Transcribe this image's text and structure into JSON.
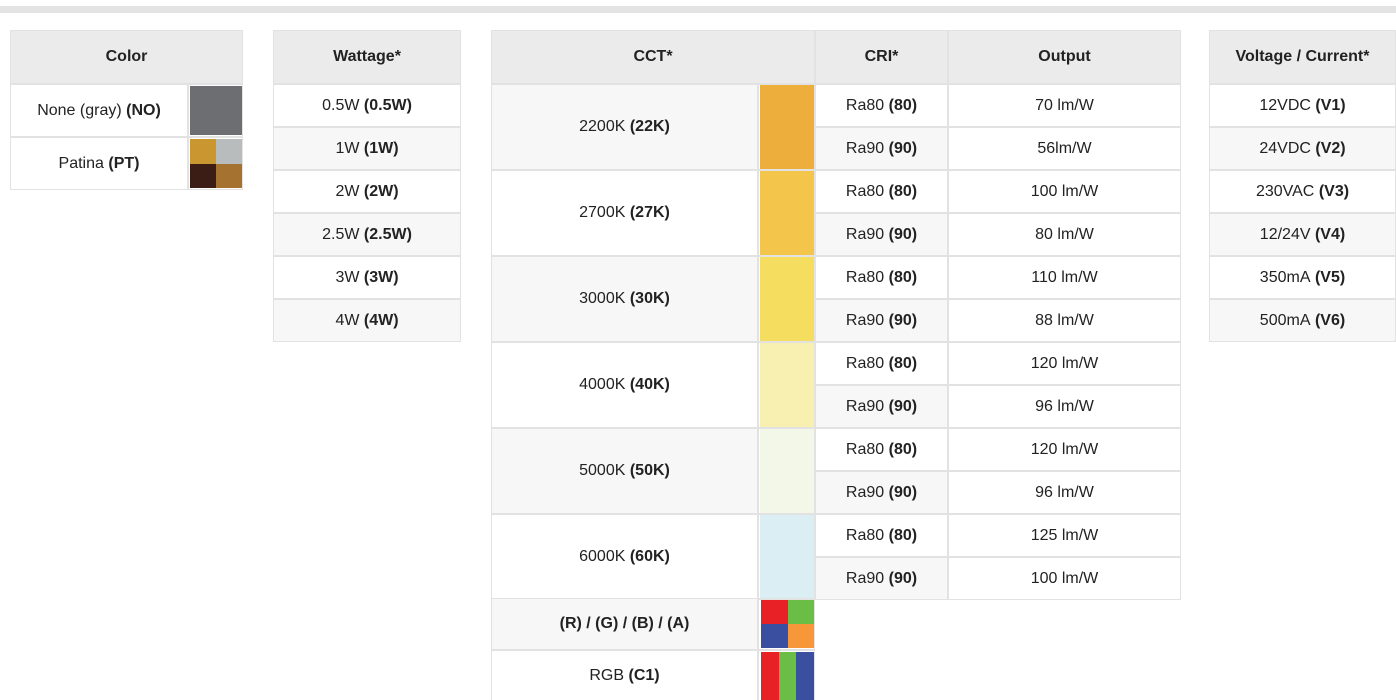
{
  "color": {
    "header": "Color",
    "rows": [
      {
        "label": "None (gray)",
        "code": "(NO)"
      },
      {
        "label": "Patina",
        "code": "(PT)"
      }
    ]
  },
  "wattage": {
    "header": "Wattage*",
    "rows": [
      {
        "label": "0.5W",
        "code": "(0.5W)"
      },
      {
        "label": "1W",
        "code": "(1W)"
      },
      {
        "label": "2W",
        "code": "(2W)"
      },
      {
        "label": "2.5W",
        "code": "(2.5W)"
      },
      {
        "label": "3W",
        "code": "(3W)"
      },
      {
        "label": "4W",
        "code": "(4W)"
      }
    ]
  },
  "cct": {
    "headers": [
      "CCT*",
      "CRI*",
      "Output"
    ],
    "rows": [
      {
        "label": "2200K",
        "code": "(22K)",
        "cri": [
          {
            "label": "Ra80",
            "code": "(80)",
            "output": "70 lm/W"
          },
          {
            "label": "Ra90",
            "code": "(90)",
            "output": "56lm/W"
          }
        ]
      },
      {
        "label": "2700K",
        "code": "(27K)",
        "cri": [
          {
            "label": "Ra80",
            "code": "(80)",
            "output": "100 lm/W"
          },
          {
            "label": "Ra90",
            "code": "(90)",
            "output": "80 lm/W"
          }
        ]
      },
      {
        "label": "3000K",
        "code": "(30K)",
        "cri": [
          {
            "label": "Ra80",
            "code": "(80)",
            "output": "110 lm/W"
          },
          {
            "label": "Ra90",
            "code": "(90)",
            "output": "88 lm/W"
          }
        ]
      },
      {
        "label": "4000K",
        "code": "(40K)",
        "cri": [
          {
            "label": "Ra80",
            "code": "(80)",
            "output": "120 lm/W"
          },
          {
            "label": "Ra90",
            "code": "(90)",
            "output": "96 lm/W"
          }
        ]
      },
      {
        "label": "5000K",
        "code": "(50K)",
        "cri": [
          {
            "label": "Ra80",
            "code": "(80)",
            "output": "120 lm/W"
          },
          {
            "label": "Ra90",
            "code": "(90)",
            "output": "96 lm/W"
          }
        ]
      },
      {
        "label": "6000K",
        "code": "(60K)",
        "cri": [
          {
            "label": "Ra80",
            "code": "(80)",
            "output": "125 lm/W"
          },
          {
            "label": "Ra90",
            "code": "(90)",
            "output": "100 lm/W"
          }
        ]
      }
    ],
    "color_rows": [
      {
        "code": "(R) / (G) / (B) / (A)"
      },
      {
        "label": "RGB",
        "code": "(C1)"
      }
    ]
  },
  "voltage": {
    "header": "Voltage / Current*",
    "rows": [
      {
        "label": "12VDC",
        "code": "(V1)"
      },
      {
        "label": "24VDC",
        "code": "(V2)"
      },
      {
        "label": "230VAC",
        "code": "(V3)"
      },
      {
        "label": "12/24V",
        "code": "(V4)"
      },
      {
        "label": "350mA",
        "code": "(V5)"
      },
      {
        "label": "500mA",
        "code": "(V6)"
      }
    ]
  }
}
